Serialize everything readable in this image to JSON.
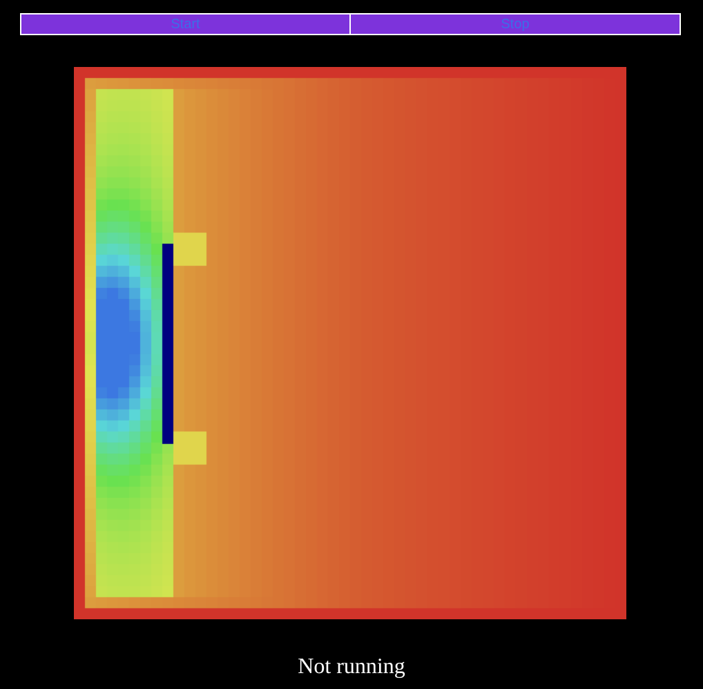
{
  "controls": {
    "start_label": "Start",
    "stop_label": "Stop"
  },
  "simulation": {
    "status_text": "Not running",
    "grid_cells": 50,
    "colors": {
      "wall": "#d1342a",
      "obstacle": "#000080",
      "button_bg": "#7d33db",
      "button_text": "#3a6ee8",
      "background": "#000000"
    }
  }
}
